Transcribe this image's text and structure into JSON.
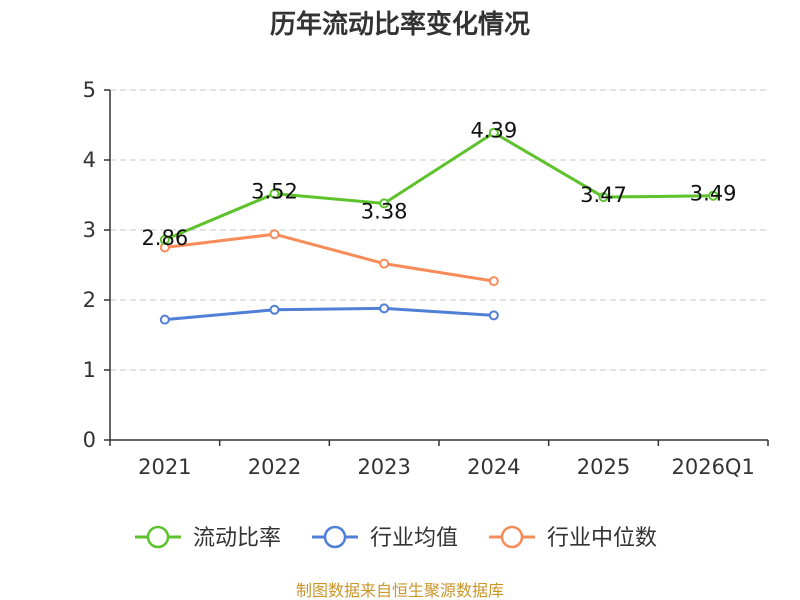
{
  "chart_data": {
    "type": "line",
    "title": "历年流动比率变化情况",
    "categories": [
      "2021",
      "2022",
      "2023",
      "2024",
      "2025",
      "2026Q1"
    ],
    "ylim": [
      0,
      5
    ],
    "yticks": [
      0,
      1,
      2,
      3,
      4,
      5
    ],
    "grid": true,
    "legend_position": "bottom",
    "series": [
      {
        "name": "流动比率",
        "color": "#5ec22c",
        "values": [
          2.86,
          3.52,
          3.38,
          4.39,
          3.47,
          3.49
        ],
        "labels": [
          "2.86",
          "3.52",
          "3.38",
          "4.39",
          "3.47",
          "3.49"
        ]
      },
      {
        "name": "行业均值",
        "color": "#4f7fd6",
        "values": [
          1.72,
          1.86,
          1.88,
          1.78,
          null,
          null
        ]
      },
      {
        "name": "行业中位数",
        "color": "#f78c5a",
        "values": [
          2.75,
          2.94,
          2.52,
          2.27,
          null,
          null
        ]
      }
    ]
  },
  "source": "制图数据来自恒生聚源数据库"
}
